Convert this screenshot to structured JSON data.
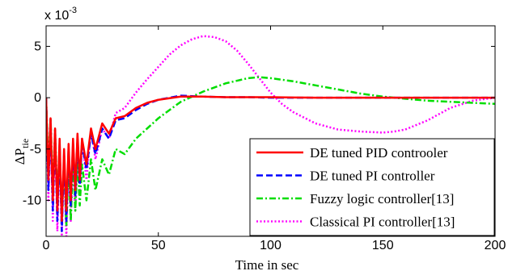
{
  "chart_data": {
    "type": "line",
    "title": "",
    "xlabel": "Time in sec",
    "ylabel_main": "ΔP",
    "ylabel_sub": "tie",
    "multiplier_prefix": "x 10",
    "multiplier_exp": "-3",
    "xlim": [
      0,
      200
    ],
    "ylim": [
      -13.5,
      7
    ],
    "xticks": [
      0,
      50,
      100,
      150,
      200
    ],
    "xtick_labels": [
      "0",
      "50",
      "100",
      "150",
      "200"
    ],
    "yticks": [
      5,
      0,
      -5,
      -10
    ],
    "ytick_labels": [
      "5",
      "0",
      "-5",
      "-10"
    ],
    "grid": false,
    "legend_position": "bottom-right",
    "series": [
      {
        "name": "DE tuned PID controoler",
        "color": "#ff0000",
        "dash": "solid",
        "x": [
          0,
          1,
          2,
          3,
          4,
          5,
          6,
          7,
          8,
          9,
          10,
          11,
          12,
          13,
          14,
          15,
          16,
          18,
          20,
          22,
          25,
          28,
          31,
          35,
          40,
          45,
          50,
          60,
          70,
          80,
          90,
          100,
          110,
          120,
          140,
          160,
          180,
          200
        ],
        "y": [
          0,
          -8,
          -2,
          -10,
          -3,
          -11,
          -4,
          -12,
          -5,
          -11,
          -4.5,
          -10,
          -4,
          -9,
          -3.5,
          -8,
          -4,
          -6.5,
          -3,
          -5,
          -2.5,
          -3.5,
          -2,
          -1.8,
          -1,
          -0.5,
          -0.2,
          0.1,
          0.1,
          0.05,
          0.05,
          0.05,
          0.02,
          0.0,
          0.0,
          0.0,
          0.0,
          0.0
        ]
      },
      {
        "name": "DE tuned PI controller",
        "color": "#0000ff",
        "dash": "dashed",
        "x": [
          0,
          1,
          2,
          3,
          4,
          5,
          6,
          7,
          8,
          9,
          10,
          11,
          12,
          13,
          14,
          15,
          16,
          18,
          20,
          22,
          25,
          28,
          31,
          35,
          40,
          45,
          50,
          60,
          70,
          80,
          90,
          100,
          110,
          120,
          140,
          160,
          180,
          200
        ],
        "y": [
          0,
          -9,
          -2.5,
          -11,
          -3.5,
          -12,
          -4.5,
          -13,
          -5.5,
          -12,
          -5,
          -10.5,
          -4.5,
          -9.5,
          -4,
          -8.5,
          -4.5,
          -7,
          -3.5,
          -5.5,
          -3,
          -4,
          -2.2,
          -2,
          -1.2,
          -0.6,
          -0.2,
          0.2,
          0.1,
          0.05,
          0.05,
          0.0,
          0.0,
          0.0,
          0.0,
          0.0,
          0.0,
          0.0
        ]
      },
      {
        "name": "Fuzzy logic controller[13]",
        "color": "#00dd00",
        "dash": "dashdot",
        "x": [
          0,
          1,
          2,
          3,
          4,
          5,
          6,
          7,
          8,
          9,
          10,
          11,
          12,
          13,
          14,
          15,
          16,
          18,
          20,
          22,
          25,
          28,
          31,
          35,
          40,
          45,
          50,
          55,
          60,
          70,
          80,
          90,
          95,
          100,
          110,
          120,
          130,
          140,
          150,
          160,
          170,
          180,
          190,
          200
        ],
        "y": [
          0,
          -7,
          -2,
          -9,
          -3,
          -10,
          -5,
          -12,
          -6,
          -12.5,
          -6,
          -12,
          -6,
          -11,
          -6,
          -10.5,
          -6.5,
          -10,
          -6,
          -9,
          -6,
          -7.5,
          -5,
          -5.5,
          -4,
          -3,
          -2,
          -1.2,
          -0.4,
          0.6,
          1.4,
          1.9,
          2.0,
          1.9,
          1.6,
          1.2,
          0.8,
          0.4,
          0.1,
          -0.1,
          -0.3,
          -0.4,
          -0.5,
          -0.6
        ]
      },
      {
        "name": "Classical PI controller[13]",
        "color": "#ff00ff",
        "dash": "dotted",
        "x": [
          0,
          1,
          2,
          3,
          4,
          5,
          6,
          7,
          8,
          9,
          10,
          11,
          12,
          13,
          14,
          15,
          16,
          18,
          20,
          22,
          25,
          28,
          31,
          35,
          40,
          45,
          50,
          55,
          60,
          65,
          70,
          75,
          80,
          85,
          90,
          95,
          100,
          105,
          110,
          120,
          130,
          140,
          150,
          155,
          160,
          170,
          180,
          190,
          200
        ],
        "y": [
          0,
          -10,
          -2,
          -12,
          -3,
          -13,
          -5,
          -13.5,
          -6,
          -13.5,
          -6,
          -12,
          -5,
          -11,
          -4.5,
          -9.5,
          -4,
          -8,
          -3,
          -6,
          -3,
          -4,
          -1.5,
          -1,
          0.5,
          1.8,
          3.0,
          4.2,
          5.1,
          5.7,
          6.0,
          5.9,
          5.5,
          4.6,
          3.3,
          1.9,
          0.5,
          -0.6,
          -1.4,
          -2.5,
          -3.1,
          -3.3,
          -3.4,
          -3.3,
          -3.1,
          -2.2,
          -1.0,
          -0.3,
          0.0
        ]
      }
    ]
  }
}
